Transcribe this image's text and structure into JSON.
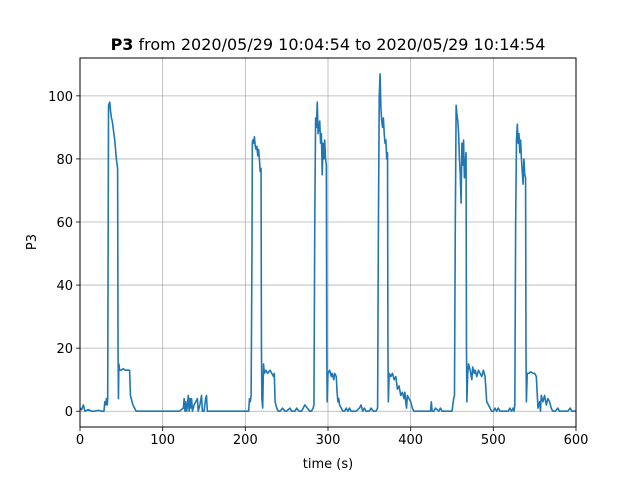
{
  "chart_data": {
    "type": "line",
    "title_bold": "P3",
    "title_rest": " from 2020/05/29 10:04:54 to 2020/05/29 10:14:54",
    "xlabel": "time (s)",
    "ylabel": "P3",
    "xlim": [
      0,
      600
    ],
    "ylim": [
      -5,
      112
    ],
    "xticks": [
      0,
      100,
      200,
      300,
      400,
      500,
      600
    ],
    "yticks": [
      0,
      20,
      40,
      60,
      80,
      100
    ],
    "grid": true,
    "series": [
      {
        "color": "#1f77b4",
        "points": [
          [
            0,
            1
          ],
          [
            2,
            0.5
          ],
          [
            4,
            2
          ],
          [
            6,
            0
          ],
          [
            10,
            0.5
          ],
          [
            14,
            0
          ],
          [
            18,
            0
          ],
          [
            22,
            0.3
          ],
          [
            26,
            0
          ],
          [
            29,
            0
          ],
          [
            30,
            3
          ],
          [
            31,
            2
          ],
          [
            32,
            4
          ],
          [
            33,
            2
          ],
          [
            33.5,
            4
          ],
          [
            34,
            50
          ],
          [
            34.5,
            97
          ],
          [
            36,
            98
          ],
          [
            37,
            95
          ],
          [
            38,
            93
          ],
          [
            39,
            92
          ],
          [
            40,
            90
          ],
          [
            41,
            88
          ],
          [
            42,
            86
          ],
          [
            43,
            83
          ],
          [
            44,
            80
          ],
          [
            45,
            78
          ],
          [
            45.5,
            77
          ],
          [
            46,
            20
          ],
          [
            46.5,
            4
          ],
          [
            47,
            15
          ],
          [
            48,
            13
          ],
          [
            50,
            13
          ],
          [
            52,
            13.5
          ],
          [
            55,
            13
          ],
          [
            58,
            13
          ],
          [
            60,
            13
          ],
          [
            61,
            5
          ],
          [
            62,
            4
          ],
          [
            64,
            2
          ],
          [
            66,
            1
          ],
          [
            68,
            0
          ],
          [
            70,
            0
          ],
          [
            80,
            0
          ],
          [
            100,
            0
          ],
          [
            120,
            0
          ],
          [
            125,
            1
          ],
          [
            126,
            4
          ],
          [
            127,
            0
          ],
          [
            128,
            3
          ],
          [
            129,
            0
          ],
          [
            130,
            2
          ],
          [
            131,
            5
          ],
          [
            132,
            0
          ],
          [
            133,
            4
          ],
          [
            134,
            1
          ],
          [
            135,
            4
          ],
          [
            136,
            0
          ],
          [
            138,
            2
          ],
          [
            140,
            3
          ],
          [
            142,
            4
          ],
          [
            143,
            0
          ],
          [
            145,
            2
          ],
          [
            147,
            5
          ],
          [
            148,
            0
          ],
          [
            150,
            0
          ],
          [
            152,
            4
          ],
          [
            153,
            5
          ],
          [
            154,
            0
          ],
          [
            155,
            0
          ],
          [
            160,
            0
          ],
          [
            180,
            0
          ],
          [
            200,
            0
          ],
          [
            204,
            0
          ],
          [
            205,
            4
          ],
          [
            206,
            3
          ],
          [
            207,
            5
          ],
          [
            208,
            50
          ],
          [
            208.5,
            85
          ],
          [
            209,
            86
          ],
          [
            210,
            85
          ],
          [
            211,
            87
          ],
          [
            212,
            84
          ],
          [
            213,
            83
          ],
          [
            214,
            84
          ],
          [
            215,
            81
          ],
          [
            216,
            83
          ],
          [
            217,
            80
          ],
          [
            218,
            76
          ],
          [
            219,
            77
          ],
          [
            219.5,
            20
          ],
          [
            220,
            4
          ],
          [
            221,
            1
          ],
          [
            222,
            15
          ],
          [
            223,
            12
          ],
          [
            225,
            13
          ],
          [
            227,
            12
          ],
          [
            230,
            13
          ],
          [
            232,
            12
          ],
          [
            234,
            11
          ],
          [
            235,
            12
          ],
          [
            236,
            3
          ],
          [
            237,
            2
          ],
          [
            238,
            1
          ],
          [
            240,
            0
          ],
          [
            242,
            0
          ],
          [
            245,
            1
          ],
          [
            248,
            0
          ],
          [
            250,
            0
          ],
          [
            254,
            1
          ],
          [
            256,
            0
          ],
          [
            258,
            0
          ],
          [
            260,
            0
          ],
          [
            262,
            1
          ],
          [
            265,
            0
          ],
          [
            268,
            0
          ],
          [
            270,
            1
          ],
          [
            272,
            2
          ],
          [
            275,
            1
          ],
          [
            278,
            0
          ],
          [
            280,
            0
          ],
          [
            282,
            1
          ],
          [
            283,
            2
          ],
          [
            284,
            60
          ],
          [
            285,
            93
          ],
          [
            286,
            90
          ],
          [
            287,
            98
          ],
          [
            288,
            88
          ],
          [
            289,
            90
          ],
          [
            290,
            92
          ],
          [
            291,
            85
          ],
          [
            292,
            88
          ],
          [
            293,
            75
          ],
          [
            294,
            85
          ],
          [
            295,
            80
          ],
          [
            296,
            86
          ],
          [
            297,
            80
          ],
          [
            298,
            78
          ],
          [
            298.5,
            20
          ],
          [
            299,
            3
          ],
          [
            300,
            12
          ],
          [
            302,
            13
          ],
          [
            304,
            11
          ],
          [
            305,
            12
          ],
          [
            307,
            10
          ],
          [
            308,
            12
          ],
          [
            310,
            11
          ],
          [
            311,
            6
          ],
          [
            312,
            3
          ],
          [
            313,
            4
          ],
          [
            314,
            2
          ],
          [
            316,
            1
          ],
          [
            318,
            0
          ],
          [
            320,
            0
          ],
          [
            322,
            1
          ],
          [
            324,
            0
          ],
          [
            326,
            1
          ],
          [
            328,
            0
          ],
          [
            330,
            0
          ],
          [
            334,
            0
          ],
          [
            338,
            1
          ],
          [
            340,
            2
          ],
          [
            342,
            0
          ],
          [
            344,
            1
          ],
          [
            346,
            0
          ],
          [
            348,
            0
          ],
          [
            350,
            0
          ],
          [
            352,
            1
          ],
          [
            355,
            0
          ],
          [
            358,
            0
          ],
          [
            360,
            1
          ],
          [
            361,
            60
          ],
          [
            362,
            100
          ],
          [
            363,
            107
          ],
          [
            364,
            96
          ],
          [
            365,
            92
          ],
          [
            366,
            90
          ],
          [
            367,
            93
          ],
          [
            368,
            88
          ],
          [
            369,
            85
          ],
          [
            370,
            86
          ],
          [
            371,
            80
          ],
          [
            372,
            82
          ],
          [
            372.5,
            20
          ],
          [
            373,
            3
          ],
          [
            374,
            12
          ],
          [
            376,
            11
          ],
          [
            378,
            12
          ],
          [
            380,
            10
          ],
          [
            382,
            11
          ],
          [
            384,
            7
          ],
          [
            386,
            8
          ],
          [
            388,
            5
          ],
          [
            390,
            6
          ],
          [
            392,
            4
          ],
          [
            393,
            6
          ],
          [
            394,
            3
          ],
          [
            395,
            1
          ],
          [
            396,
            5
          ],
          [
            398,
            4
          ],
          [
            400,
            3
          ],
          [
            402,
            1
          ],
          [
            404,
            0
          ],
          [
            406,
            0
          ],
          [
            410,
            0
          ],
          [
            414,
            0
          ],
          [
            418,
            0
          ],
          [
            420,
            0
          ],
          [
            422,
            0
          ],
          [
            424,
            0
          ],
          [
            425,
            3
          ],
          [
            426,
            0
          ],
          [
            428,
            0
          ],
          [
            430,
            1
          ],
          [
            434,
            0
          ],
          [
            436,
            1
          ],
          [
            438,
            0
          ],
          [
            440,
            0
          ],
          [
            444,
            0
          ],
          [
            448,
            0
          ],
          [
            450,
            0
          ],
          [
            452,
            4
          ],
          [
            453,
            5
          ],
          [
            454,
            60
          ],
          [
            455,
            97
          ],
          [
            456,
            94
          ],
          [
            457,
            92
          ],
          [
            458,
            88
          ],
          [
            459,
            80
          ],
          [
            460,
            75
          ],
          [
            461,
            66
          ],
          [
            462,
            85
          ],
          [
            463,
            78
          ],
          [
            464,
            86
          ],
          [
            465,
            74
          ],
          [
            466,
            78
          ],
          [
            467,
            82
          ],
          [
            467.5,
            20
          ],
          [
            468,
            3
          ],
          [
            469,
            12
          ],
          [
            470,
            15
          ],
          [
            472,
            13
          ],
          [
            474,
            10
          ],
          [
            475,
            14
          ],
          [
            477,
            12
          ],
          [
            478,
            13
          ],
          [
            480,
            11
          ],
          [
            482,
            13
          ],
          [
            484,
            12
          ],
          [
            486,
            11
          ],
          [
            488,
            13
          ],
          [
            490,
            11
          ],
          [
            492,
            3
          ],
          [
            494,
            2
          ],
          [
            496,
            1
          ],
          [
            498,
            0
          ],
          [
            500,
            0
          ],
          [
            502,
            1
          ],
          [
            504,
            0
          ],
          [
            506,
            1
          ],
          [
            508,
            0
          ],
          [
            510,
            0
          ],
          [
            514,
            0
          ],
          [
            518,
            0
          ],
          [
            520,
            1
          ],
          [
            522,
            0
          ],
          [
            524,
            1
          ],
          [
            525,
            0
          ],
          [
            526,
            2
          ],
          [
            527,
            60
          ],
          [
            528,
            86
          ],
          [
            529,
            91
          ],
          [
            530,
            85
          ],
          [
            531,
            88
          ],
          [
            532,
            82
          ],
          [
            533,
            86
          ],
          [
            534,
            80
          ],
          [
            535,
            76
          ],
          [
            536,
            72
          ],
          [
            537,
            80
          ],
          [
            538,
            75
          ],
          [
            539,
            74
          ],
          [
            539.5,
            20
          ],
          [
            540,
            3
          ],
          [
            541,
            12
          ],
          [
            543,
            12
          ],
          [
            545,
            12.5
          ],
          [
            548,
            12
          ],
          [
            550,
            12
          ],
          [
            552,
            11
          ],
          [
            553,
            6
          ],
          [
            554,
            1
          ],
          [
            556,
            3
          ],
          [
            557,
            0
          ],
          [
            558,
            5
          ],
          [
            560,
            3
          ],
          [
            562,
            5
          ],
          [
            564,
            2
          ],
          [
            566,
            4
          ],
          [
            568,
            3
          ],
          [
            570,
            1
          ],
          [
            572,
            0
          ],
          [
            575,
            0
          ],
          [
            578,
            1
          ],
          [
            580,
            0
          ],
          [
            585,
            0
          ],
          [
            590,
            0
          ],
          [
            593,
            1
          ],
          [
            595,
            0
          ],
          [
            600,
            0
          ]
        ]
      }
    ]
  }
}
